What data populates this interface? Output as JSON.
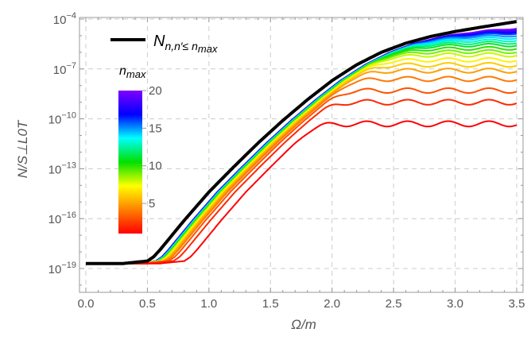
{
  "chart_data": {
    "type": "line",
    "xlabel": "Ω/m",
    "ylabel": "N/S⊥L0T",
    "xlim": [
      -0.05,
      3.5
    ],
    "ylim_log10": [
      -20,
      -4
    ],
    "y_scale": "log",
    "x_ticks": [
      {
        "value": 0.0,
        "label": "0.0"
      },
      {
        "value": 0.5,
        "label": "0.5"
      },
      {
        "value": 1.0,
        "label": "1.0"
      },
      {
        "value": 1.5,
        "label": "1.5"
      },
      {
        "value": 2.0,
        "label": "2.0"
      },
      {
        "value": 2.5,
        "label": "2.5"
      },
      {
        "value": 3.0,
        "label": "3.0"
      },
      {
        "value": 3.5,
        "label": "3.5"
      }
    ],
    "y_ticks": [
      {
        "exp": -4,
        "base": "10",
        "sup": "−4"
      },
      {
        "exp": -7,
        "base": "10",
        "sup": "−7"
      },
      {
        "exp": -10,
        "base": "10",
        "sup": "−10"
      },
      {
        "exp": -13,
        "base": "10",
        "sup": "−13"
      },
      {
        "exp": -16,
        "base": "10",
        "sup": "−16"
      },
      {
        "exp": -19,
        "base": "10",
        "sup": "−19"
      }
    ],
    "grid": true,
    "grid_style": "dashed",
    "legend": {
      "placement": "top-left",
      "entry": {
        "main": "N",
        "sub": "n,n′≤ n",
        "subsub": "max"
      },
      "line_color": "#000000"
    },
    "colorbar": {
      "title_main": "n",
      "title_sub": "max",
      "min": 1,
      "max": 20,
      "ticks": [
        5,
        10,
        15,
        20
      ],
      "colors": [
        "#ff0000",
        "#ff8000",
        "#ffff00",
        "#00e000",
        "#00ffff",
        "#0000ff",
        "#8000ff"
      ]
    },
    "series_params": {
      "n_max_values": [
        1,
        2,
        3,
        4,
        5,
        6,
        7,
        8,
        9,
        10,
        11,
        12,
        13,
        14,
        15,
        16,
        17,
        18,
        19,
        20
      ],
      "plateau_log10": [
        -10.3,
        -9.0,
        -8.3,
        -7.6,
        -7.1,
        -6.75,
        -6.45,
        -6.15,
        -5.95,
        -5.75,
        -5.55,
        -5.4,
        -5.25,
        -5.1,
        -4.95,
        -4.8,
        -4.7,
        -4.6,
        -4.5,
        -4.4
      ],
      "baseline_log10": -18.7,
      "envelope_log10": {
        "x": [
          0.0,
          0.3,
          0.5,
          0.55,
          0.6,
          0.7,
          0.8,
          1.0,
          1.2,
          1.4,
          1.6,
          1.8,
          2.0,
          2.2,
          2.4,
          2.6,
          2.8,
          3.0,
          3.2,
          3.5
        ],
        "y": [
          -18.7,
          -18.7,
          -18.55,
          -18.3,
          -17.9,
          -17.0,
          -16.1,
          -14.4,
          -12.9,
          -11.45,
          -10.1,
          -8.85,
          -7.7,
          -6.75,
          -6.0,
          -5.45,
          -5.05,
          -4.75,
          -4.5,
          -4.15
        ]
      }
    }
  }
}
